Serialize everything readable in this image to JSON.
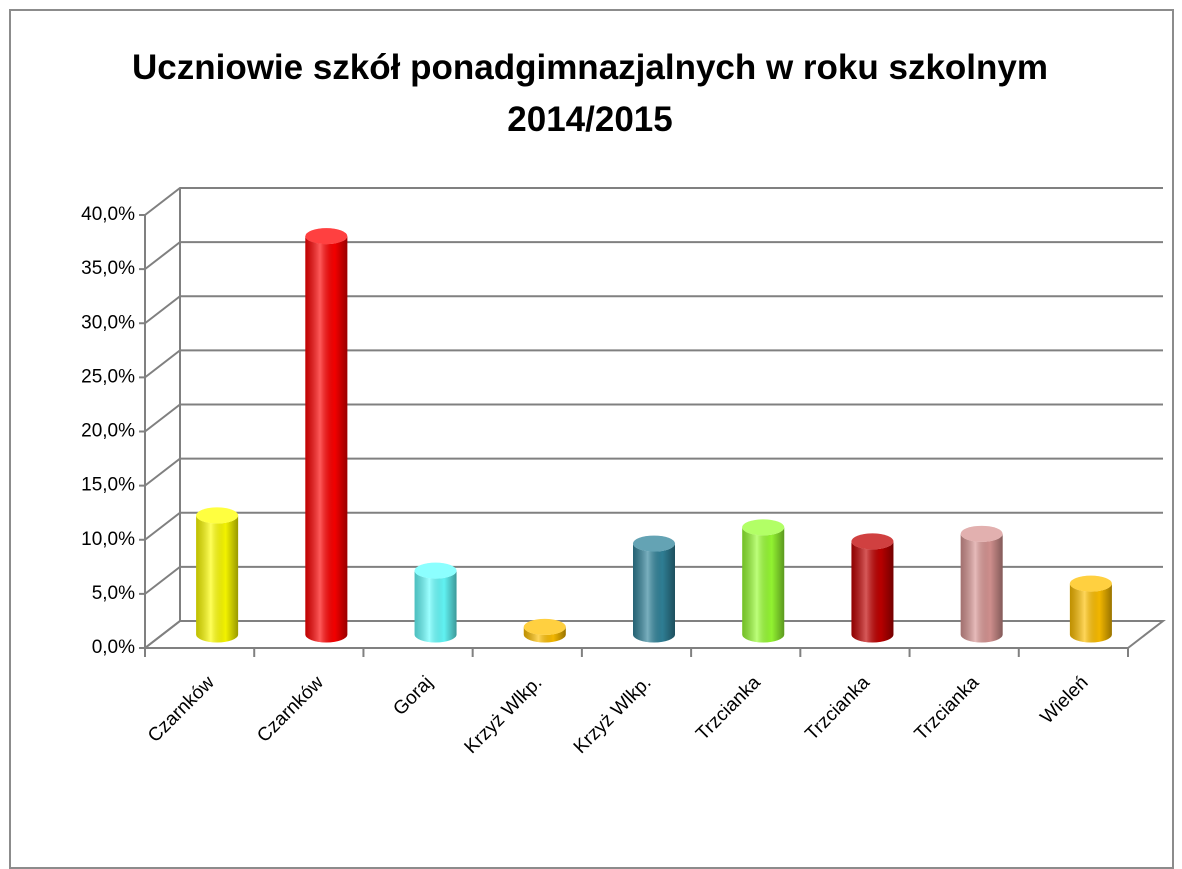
{
  "chart_data": {
    "type": "bar3d",
    "title": "Uczniowie szkół ponadgimnazjalnych w roku szkolnym 2014/2015",
    "categories": [
      "Czarnków",
      "Czarnków",
      "Goraj",
      "Krzyż Wlkp.",
      "Krzyż Wlkp.",
      "Trzcianka",
      "Trzcianka",
      "Trzcianka",
      "Wieleń"
    ],
    "values": [
      11.0,
      36.8,
      5.9,
      0.7,
      8.4,
      9.9,
      8.6,
      9.3,
      4.7
    ],
    "colors": [
      "#ffff00",
      "#ff0000",
      "#66ffff",
      "#ffc000",
      "#31849b",
      "#99ff33",
      "#c00000",
      "#d99694",
      "#ffc000"
    ],
    "ylim": [
      0,
      40
    ],
    "yticks": [
      {
        "value": 0,
        "label": "0,0%"
      },
      {
        "value": 5,
        "label": "5,0%"
      },
      {
        "value": 10,
        "label": "10,0%"
      },
      {
        "value": 15,
        "label": "15,0%"
      },
      {
        "value": 20,
        "label": "20,0%"
      },
      {
        "value": 25,
        "label": "25,0%"
      },
      {
        "value": 30,
        "label": "30,0%"
      },
      {
        "value": 35,
        "label": "35,0%"
      },
      {
        "value": 40,
        "label": "40,0%"
      }
    ],
    "grid": true
  }
}
